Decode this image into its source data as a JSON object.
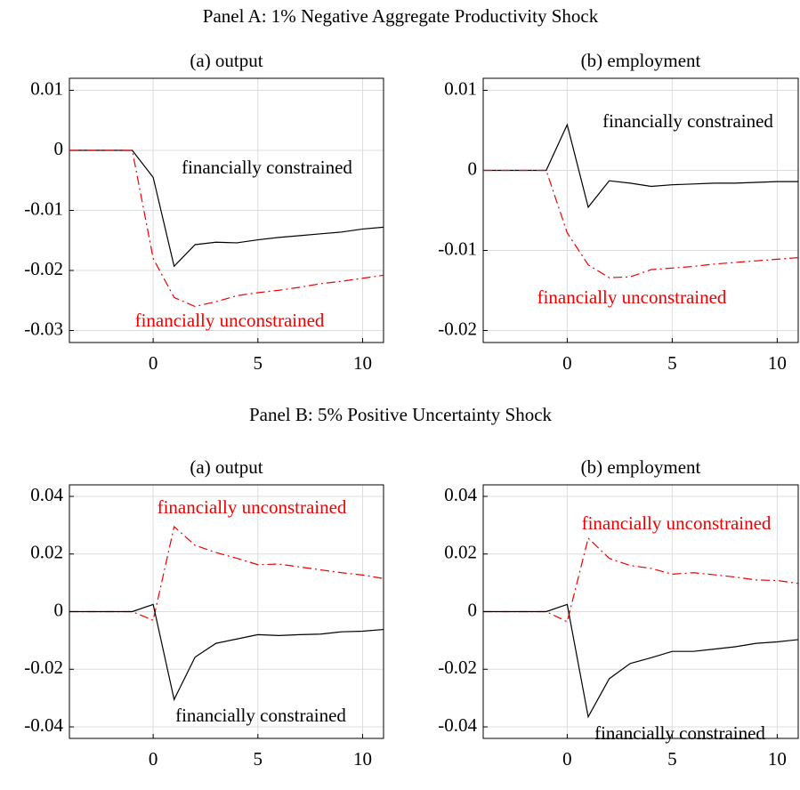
{
  "panel_titles": [
    "Panel A: 1% Negative Aggregate Productivity Shock",
    "Panel B: 5% Positive Uncertainty Shock"
  ],
  "chart_data": [
    {
      "type": "line",
      "title": "(a) output",
      "x": [
        -4,
        -3,
        -2,
        -1,
        0,
        1,
        2,
        3,
        4,
        5,
        6,
        7,
        8,
        9,
        10,
        11
      ],
      "xlim": [
        -4,
        11
      ],
      "xticks": [
        0,
        5,
        10
      ],
      "ylim": [
        -0.032,
        0.012
      ],
      "yticks": [
        -0.03,
        -0.02,
        -0.01,
        0,
        0.01
      ],
      "grid": true,
      "series": [
        {
          "name": "financially constrained",
          "color": "#000000",
          "style": "solid",
          "values": [
            0,
            0,
            0,
            0,
            -0.0045,
            -0.0193,
            -0.0157,
            -0.0153,
            -0.0154,
            -0.0149,
            -0.0145,
            -0.0142,
            -0.0139,
            -0.0136,
            -0.0131,
            -0.0128
          ]
        },
        {
          "name": "financially unconstrained",
          "color": "#ee0000",
          "style": "dashdot",
          "values": [
            0,
            0,
            0,
            0,
            -0.018,
            -0.0245,
            -0.026,
            -0.0252,
            -0.0242,
            -0.0237,
            -0.0233,
            -0.0228,
            -0.0222,
            -0.0218,
            -0.0213,
            -0.0208
          ]
        }
      ]
    },
    {
      "type": "line",
      "title": "(b) employment",
      "x": [
        -4,
        -3,
        -2,
        -1,
        0,
        1,
        2,
        3,
        4,
        5,
        6,
        7,
        8,
        9,
        10,
        11
      ],
      "xlim": [
        -4,
        11
      ],
      "xticks": [
        0,
        5,
        10
      ],
      "ylim": [
        -0.0215,
        0.0115
      ],
      "yticks": [
        -0.02,
        -0.01,
        0,
        0.01
      ],
      "grid": true,
      "series": [
        {
          "name": "financially constrained",
          "color": "#000000",
          "style": "solid",
          "values": [
            0,
            0,
            0,
            0,
            0.0057,
            -0.0046,
            -0.0013,
            -0.0016,
            -0.002,
            -0.0018,
            -0.0017,
            -0.0016,
            -0.0016,
            -0.0015,
            -0.0014,
            -0.0014
          ]
        },
        {
          "name": "financially unconstrained",
          "color": "#ee0000",
          "style": "dashdot",
          "values": [
            0,
            0,
            0,
            0,
            -0.0078,
            -0.0118,
            -0.0134,
            -0.0133,
            -0.0124,
            -0.0122,
            -0.012,
            -0.0117,
            -0.0115,
            -0.0113,
            -0.0111,
            -0.0109
          ]
        }
      ]
    },
    {
      "type": "line",
      "title": "(a) output",
      "x": [
        -4,
        -3,
        -2,
        -1,
        0,
        1,
        2,
        3,
        4,
        5,
        6,
        7,
        8,
        9,
        10,
        11
      ],
      "xlim": [
        -4,
        11
      ],
      "xticks": [
        0,
        5,
        10
      ],
      "ylim": [
        -0.044,
        0.044
      ],
      "yticks": [
        -0.04,
        -0.02,
        0,
        0.02,
        0.04
      ],
      "grid": true,
      "series": [
        {
          "name": "financially unconstrained",
          "color": "#ee0000",
          "style": "dashdot",
          "values": [
            0,
            0,
            0,
            0,
            -0.003,
            0.0295,
            0.023,
            0.0205,
            0.0185,
            0.0163,
            0.0165,
            0.0155,
            0.0145,
            0.0135,
            0.0127,
            0.0115
          ]
        },
        {
          "name": "financially constrained",
          "color": "#000000",
          "style": "solid",
          "values": [
            0,
            0,
            0,
            0,
            0.0025,
            -0.0305,
            -0.0158,
            -0.011,
            -0.0095,
            -0.008,
            -0.0083,
            -0.008,
            -0.0078,
            -0.007,
            -0.0068,
            -0.0062
          ]
        }
      ]
    },
    {
      "type": "line",
      "title": "(b) employment",
      "x": [
        -4,
        -3,
        -2,
        -1,
        0,
        1,
        2,
        3,
        4,
        5,
        6,
        7,
        8,
        9,
        10,
        11
      ],
      "xlim": [
        -4,
        11
      ],
      "xticks": [
        0,
        5,
        10
      ],
      "ylim": [
        -0.044,
        0.044
      ],
      "yticks": [
        -0.04,
        -0.02,
        0,
        0.02,
        0.04
      ],
      "grid": true,
      "series": [
        {
          "name": "financially unconstrained",
          "color": "#ee0000",
          "style": "dashdot",
          "values": [
            0,
            0,
            0,
            0,
            -0.0035,
            0.0255,
            0.0185,
            0.016,
            0.015,
            0.013,
            0.0135,
            0.0128,
            0.012,
            0.011,
            0.0108,
            0.0098
          ]
        },
        {
          "name": "financially constrained",
          "color": "#000000",
          "style": "solid",
          "values": [
            0,
            0,
            0,
            0,
            0.0025,
            -0.0365,
            -0.0233,
            -0.018,
            -0.016,
            -0.0138,
            -0.0138,
            -0.013,
            -0.0122,
            -0.011,
            -0.0105,
            -0.0097
          ]
        }
      ]
    }
  ]
}
